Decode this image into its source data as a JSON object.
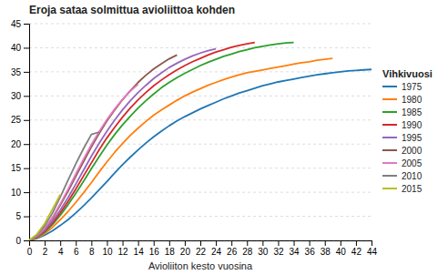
{
  "chart_data": {
    "type": "line",
    "title": "Eroja sataa solmittua avioliittoa kohden",
    "xlabel": "Avioliiton kesto vuosina",
    "legend_title": "Vihkivuosi",
    "legend": "right",
    "grid": true,
    "xlim": [
      0,
      44
    ],
    "ylim": [
      0,
      45
    ],
    "xticks": [
      0,
      2,
      4,
      6,
      8,
      10,
      12,
      14,
      16,
      18,
      20,
      22,
      24,
      26,
      28,
      30,
      32,
      34,
      36,
      38,
      40,
      42,
      44
    ],
    "yticks": [
      0,
      5,
      10,
      15,
      20,
      25,
      30,
      35,
      40,
      45
    ],
    "series": [
      {
        "name": "1975",
        "x": [
          0,
          1,
          2,
          3,
          4,
          5,
          6,
          7,
          8,
          9,
          10,
          11,
          12,
          13,
          14,
          15,
          16,
          17,
          18,
          19,
          20,
          21,
          22,
          23,
          24,
          25,
          26,
          27,
          28,
          29,
          30,
          31,
          32,
          33,
          34,
          35,
          36,
          37,
          38,
          39,
          40,
          41,
          42,
          43,
          44
        ],
        "values": [
          0,
          0.4,
          1.1,
          2.0,
          3.1,
          4.3,
          5.7,
          7.2,
          8.8,
          10.5,
          12.2,
          14.0,
          15.7,
          17.3,
          18.8,
          20.2,
          21.5,
          22.7,
          23.8,
          24.8,
          25.7,
          26.5,
          27.3,
          28.0,
          28.7,
          29.4,
          30.0,
          30.6,
          31.1,
          31.6,
          32.1,
          32.5,
          32.9,
          33.2,
          33.5,
          33.8,
          34.1,
          34.4,
          34.6,
          34.8,
          35.0,
          35.2,
          35.3,
          35.4,
          35.5
        ]
      },
      {
        "name": "1980",
        "x": [
          0,
          1,
          2,
          3,
          4,
          5,
          6,
          7,
          8,
          9,
          10,
          11,
          12,
          13,
          14,
          15,
          16,
          17,
          18,
          19,
          20,
          21,
          22,
          23,
          24,
          25,
          26,
          27,
          28,
          29,
          30,
          31,
          32,
          33,
          34,
          35,
          36,
          37,
          38,
          39
        ],
        "values": [
          0,
          0.5,
          1.4,
          2.7,
          4.3,
          6.0,
          7.9,
          9.9,
          12.0,
          14.2,
          16.3,
          18.3,
          20.1,
          21.8,
          23.3,
          24.7,
          26.0,
          27.1,
          28.1,
          29.1,
          30.0,
          30.8,
          31.5,
          32.2,
          32.8,
          33.4,
          33.9,
          34.4,
          34.8,
          35.1,
          35.4,
          35.7,
          36.0,
          36.3,
          36.6,
          36.9,
          37.1,
          37.4,
          37.6,
          37.8
        ]
      },
      {
        "name": "1985",
        "x": [
          0,
          1,
          2,
          3,
          4,
          5,
          6,
          7,
          8,
          9,
          10,
          11,
          12,
          13,
          14,
          15,
          16,
          17,
          18,
          19,
          20,
          21,
          22,
          23,
          24,
          25,
          26,
          27,
          28,
          29,
          30,
          31,
          32,
          33,
          34
        ],
        "values": [
          0,
          0.6,
          1.7,
          3.3,
          5.2,
          7.4,
          9.8,
          12.3,
          14.9,
          17.4,
          19.8,
          22.0,
          24.0,
          25.8,
          27.5,
          29.0,
          30.4,
          31.7,
          32.8,
          33.8,
          34.7,
          35.5,
          36.3,
          37.0,
          37.6,
          38.2,
          38.7,
          39.2,
          39.6,
          40.0,
          40.3,
          40.6,
          40.8,
          41.0,
          41.1
        ]
      },
      {
        "name": "1990",
        "x": [
          0,
          1,
          2,
          3,
          4,
          5,
          6,
          7,
          8,
          9,
          10,
          11,
          12,
          13,
          14,
          15,
          16,
          17,
          18,
          19,
          20,
          21,
          22,
          23,
          24,
          25,
          26,
          27,
          28,
          29
        ],
        "values": [
          0,
          0.7,
          1.9,
          3.6,
          5.7,
          8.1,
          10.7,
          13.4,
          16.1,
          18.8,
          21.3,
          23.5,
          25.6,
          27.5,
          29.2,
          30.7,
          32.1,
          33.3,
          34.4,
          35.4,
          36.3,
          37.1,
          37.8,
          38.5,
          39.1,
          39.6,
          40.1,
          40.5,
          40.8,
          41.1
        ]
      },
      {
        "name": "1995",
        "x": [
          0,
          1,
          2,
          3,
          4,
          5,
          6,
          7,
          8,
          9,
          10,
          11,
          12,
          13,
          14,
          15,
          16,
          17,
          18,
          19,
          20,
          21,
          22,
          23,
          24
        ],
        "values": [
          0,
          0.8,
          2.1,
          4.0,
          6.3,
          8.9,
          11.7,
          14.6,
          17.5,
          20.2,
          22.7,
          25.0,
          27.1,
          29.0,
          30.7,
          32.2,
          33.6,
          34.8,
          35.9,
          36.8,
          37.6,
          38.3,
          38.9,
          39.4,
          39.8
        ]
      },
      {
        "name": "2000",
        "x": [
          0,
          1,
          2,
          3,
          4,
          5,
          6,
          7,
          8,
          9,
          10,
          11,
          12,
          13,
          14,
          15,
          16,
          17,
          18,
          19
        ],
        "values": [
          0,
          0.9,
          2.4,
          4.6,
          7.3,
          10.2,
          13.3,
          16.4,
          19.4,
          22.2,
          24.8,
          27.1,
          29.2,
          31.1,
          32.8,
          34.3,
          35.6,
          36.7,
          37.7,
          38.5
        ]
      },
      {
        "name": "2005",
        "x": [
          0,
          1,
          2,
          3,
          4,
          5,
          6,
          7,
          8,
          9,
          10,
          11,
          12,
          13,
          14
        ],
        "values": [
          0,
          0.9,
          2.5,
          4.8,
          7.6,
          10.6,
          13.8,
          16.9,
          19.9,
          22.6,
          25.1,
          27.3,
          29.3,
          31.0,
          32.4
        ]
      },
      {
        "name": "2010",
        "x": [
          0,
          1,
          2,
          3,
          4,
          5,
          6,
          7,
          8,
          9
        ],
        "values": [
          0,
          1.1,
          3.0,
          5.7,
          9.0,
          12.5,
          15.9,
          19.1,
          22.0,
          22.5
        ]
      },
      {
        "name": "2015",
        "x": [
          0,
          1,
          2,
          3,
          4
        ],
        "values": [
          0,
          1.3,
          3.5,
          6.5,
          9.5
        ]
      }
    ]
  }
}
